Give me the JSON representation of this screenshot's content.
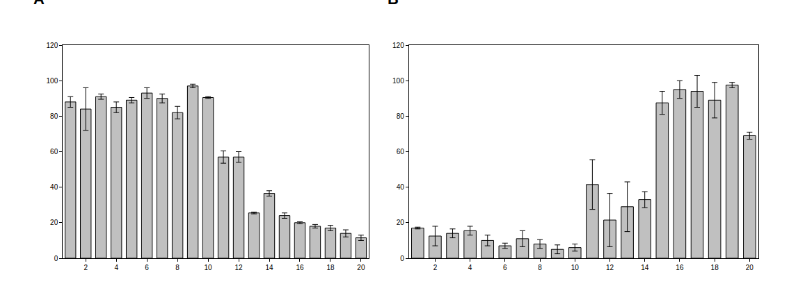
{
  "chart_data": [
    {
      "type": "bar",
      "title": "A",
      "x": [
        1,
        2,
        3,
        4,
        5,
        6,
        7,
        8,
        9,
        10,
        11,
        12,
        13,
        14,
        15,
        16,
        17,
        18,
        19,
        20
      ],
      "values": [
        88,
        84,
        91,
        85,
        89,
        93,
        90,
        82,
        97,
        90.5,
        57,
        57,
        25.5,
        36.5,
        24,
        20,
        18,
        17,
        14,
        11.5
      ],
      "errors": [
        3,
        12,
        1.5,
        3,
        1.5,
        3,
        2.5,
        3.5,
        1,
        0.5,
        3.5,
        3,
        0.5,
        1.5,
        1.5,
        0.5,
        1,
        1.5,
        2,
        1.5
      ],
      "color": "#c0c0c0",
      "xlim": [
        0.5,
        20.5
      ],
      "xticks": [
        2,
        4,
        6,
        8,
        10,
        12,
        14,
        16,
        18,
        20
      ],
      "ylim": [
        0,
        120
      ],
      "yticks": [
        0,
        20,
        40,
        60,
        80,
        100,
        120
      ],
      "grid": false
    },
    {
      "type": "bar",
      "title": "B",
      "x": [
        1,
        2,
        3,
        4,
        5,
        6,
        7,
        8,
        9,
        10,
        11,
        12,
        13,
        14,
        15,
        16,
        17,
        18,
        19,
        20
      ],
      "values": [
        17,
        12.5,
        14,
        15.5,
        10,
        7,
        11,
        8,
        5,
        6,
        41.5,
        21.5,
        29,
        33,
        87.5,
        95,
        94,
        89,
        97.5,
        69
      ],
      "errors": [
        0.5,
        5.5,
        2.5,
        2.5,
        3,
        1.5,
        4.5,
        2.5,
        2.5,
        2,
        14,
        15,
        14,
        4.5,
        6.5,
        5,
        9,
        10,
        1.5,
        2
      ],
      "color": "#c0c0c0",
      "xlim": [
        0.5,
        20.5
      ],
      "xticks": [
        2,
        4,
        6,
        8,
        10,
        12,
        14,
        16,
        18,
        20
      ],
      "ylim": [
        0,
        120
      ],
      "yticks": [
        0,
        20,
        40,
        60,
        80,
        100,
        120
      ],
      "grid": false
    }
  ]
}
